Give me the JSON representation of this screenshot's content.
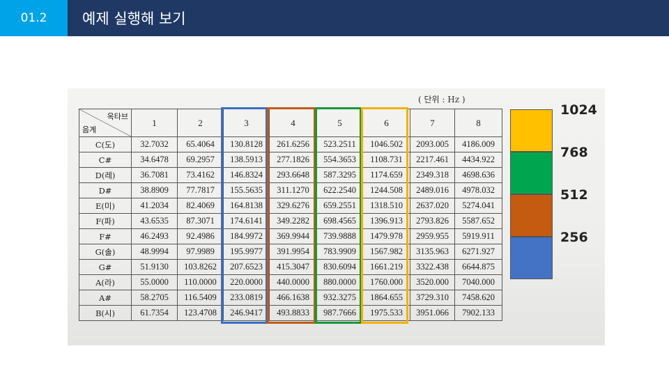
{
  "header": {
    "section_number": "01.2",
    "title": "예제 실행해 보기",
    "accent_color": "#00a3e8",
    "bar_color": "#1f3864"
  },
  "table": {
    "unit_label": "( 단위 : Hz )",
    "corner_top": "옥타브",
    "corner_bottom": "음계",
    "octaves": [
      "1",
      "2",
      "3",
      "4",
      "5",
      "6",
      "7",
      "8"
    ],
    "rows": [
      {
        "note": "C(도)",
        "values": [
          "32.7032",
          "65.4064",
          "130.8128",
          "261.6256",
          "523.2511",
          "1046.502",
          "2093.005",
          "4186.009"
        ]
      },
      {
        "note": "C#",
        "values": [
          "34.6478",
          "69.2957",
          "138.5913",
          "277.1826",
          "554.3653",
          "1108.731",
          "2217.461",
          "4434.922"
        ]
      },
      {
        "note": "D(레)",
        "values": [
          "36.7081",
          "73.4162",
          "146.8324",
          "293.6648",
          "587.3295",
          "1174.659",
          "2349.318",
          "4698.636"
        ]
      },
      {
        "note": "D#",
        "values": [
          "38.8909",
          "77.7817",
          "155.5635",
          "311.1270",
          "622.2540",
          "1244.508",
          "2489.016",
          "4978.032"
        ]
      },
      {
        "note": "E(미)",
        "values": [
          "41.2034",
          "82.4069",
          "164.8138",
          "329.6276",
          "659.2551",
          "1318.510",
          "2637.020",
          "5274.041"
        ]
      },
      {
        "note": "F(파)",
        "values": [
          "43.6535",
          "87.3071",
          "174.6141",
          "349.2282",
          "698.4565",
          "1396.913",
          "2793.826",
          "5587.652"
        ]
      },
      {
        "note": "F#",
        "values": [
          "46.2493",
          "92.4986",
          "184.9972",
          "369.9944",
          "739.9888",
          "1479.978",
          "2959.955",
          "5919.911"
        ]
      },
      {
        "note": "G(솔)",
        "values": [
          "48.9994",
          "97.9989",
          "195.9977",
          "391.9954",
          "783.9909",
          "1567.982",
          "3135.963",
          "6271.927"
        ]
      },
      {
        "note": "G#",
        "values": [
          "51.9130",
          "103.8262",
          "207.6523",
          "415.3047",
          "830.6094",
          "1661.219",
          "3322.438",
          "6644.875"
        ]
      },
      {
        "note": "A(라)",
        "values": [
          "55.0000",
          "110.0000",
          "220.0000",
          "440.0000",
          "880.0000",
          "1760.000",
          "3520.000",
          "7040.000"
        ]
      },
      {
        "note": "A#",
        "values": [
          "58.2705",
          "116.5409",
          "233.0819",
          "466.1638",
          "932.3275",
          "1864.655",
          "3729.310",
          "7458.620"
        ]
      },
      {
        "note": "B(시)",
        "values": [
          "61.7354",
          "123.4708",
          "246.9417",
          "493.8833",
          "987.7666",
          "1975.533",
          "3951.066",
          "7902.133"
        ]
      }
    ]
  },
  "highlights": [
    {
      "octave": "3",
      "color": "#3a6fc4"
    },
    {
      "octave": "4",
      "color": "#c55a11"
    },
    {
      "octave": "5",
      "color": "#109a3a"
    },
    {
      "octave": "6",
      "color": "#f2b000"
    }
  ],
  "legend": [
    {
      "label": "1024",
      "color": "#ffc000"
    },
    {
      "label": "768",
      "color": "#00a64f"
    },
    {
      "label": "512",
      "color": "#c55a11"
    },
    {
      "label": "256",
      "color": "#4472c4"
    }
  ]
}
